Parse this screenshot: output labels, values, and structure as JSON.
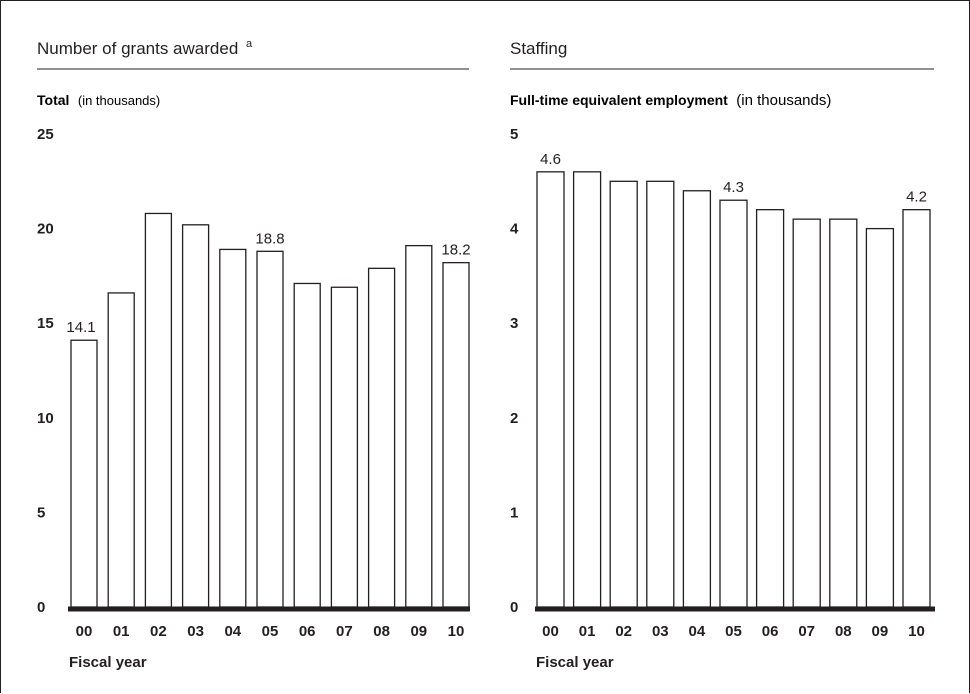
{
  "chart_data": [
    {
      "type": "bar",
      "title": "Number of grants awarded",
      "title_superscript": "a",
      "subtitle_bold": "Total",
      "subtitle_regular": "(in thousands)",
      "xlabel": "Fiscal year",
      "categories": [
        "00",
        "01",
        "02",
        "03",
        "04",
        "05",
        "06",
        "07",
        "08",
        "09",
        "10"
      ],
      "values": [
        14.1,
        16.6,
        20.8,
        20.2,
        18.9,
        18.8,
        17.1,
        16.9,
        17.9,
        19.1,
        18.2
      ],
      "data_labels": [
        {
          "index": 0,
          "text": "14.1"
        },
        {
          "index": 5,
          "text": "18.8"
        },
        {
          "index": 10,
          "text": "18.2"
        }
      ],
      "yticks": [
        "0",
        "5",
        "10",
        "15",
        "20",
        "25"
      ],
      "ylim": [
        0,
        25
      ],
      "grid": false
    },
    {
      "type": "bar",
      "title": "Staffing",
      "subtitle_bold": "Full-time equivalent employment",
      "subtitle_regular": "(in thousands)",
      "xlabel": "Fiscal year",
      "categories": [
        "00",
        "01",
        "02",
        "03",
        "04",
        "05",
        "06",
        "07",
        "08",
        "09",
        "10"
      ],
      "values": [
        4.6,
        4.6,
        4.5,
        4.5,
        4.4,
        4.3,
        4.2,
        4.1,
        4.1,
        4.0,
        4.2
      ],
      "data_labels": [
        {
          "index": 0,
          "text": "4.6"
        },
        {
          "index": 5,
          "text": "4.3"
        },
        {
          "index": 10,
          "text": "4.2"
        }
      ],
      "yticks": [
        "0",
        "1",
        "2",
        "3",
        "4",
        "5"
      ],
      "ylim": [
        0,
        5
      ],
      "grid": false
    }
  ],
  "colors": {
    "ink": "#231f20",
    "bar_fill": "#ffffff"
  }
}
